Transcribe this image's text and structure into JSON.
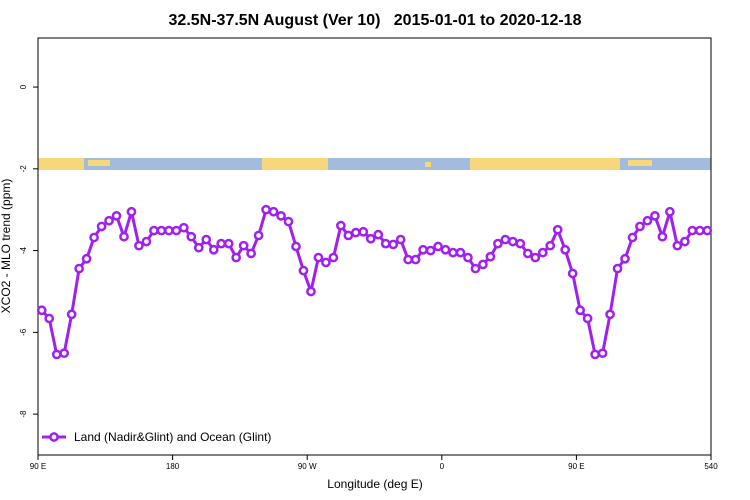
{
  "chart_data": {
    "type": "line",
    "title": "32.5N-37.5N August (Ver 10)   2015-01-01 to 2020-12-18",
    "x_label": "Longitude (deg E)",
    "y_label": "XCO2 - MLO trend (ppm)",
    "xlim": [
      90,
      540
    ],
    "xticks": [
      {
        "value": 90,
        "label": "90 E"
      },
      180,
      {
        "value": 270,
        "label": "90 W"
      },
      {
        "value": 360,
        "label": "0"
      },
      {
        "value": 450,
        "label": "90 E"
      },
      540
    ],
    "ylim": [
      -9.0,
      1.2
    ],
    "yticks": [
      0,
      -2,
      -4,
      -6,
      -8
    ],
    "legend": "bottom-left",
    "x": [
      92.5,
      97.5,
      102.5,
      107.5,
      112.5,
      117.5,
      122.5,
      127.5,
      132.5,
      137.5,
      142.5,
      147.5,
      152.5,
      157.5,
      162.5,
      167.5,
      172.5,
      177.5,
      182.5,
      187.5,
      192.5,
      197.5,
      202.5,
      207.5,
      212.5,
      217.5,
      222.5,
      227.5,
      232.5,
      237.5,
      242.5,
      247.5,
      252.5,
      257.5,
      262.5,
      267.5,
      272.5,
      277.5,
      282.5,
      287.5,
      292.5,
      297.5,
      302.5,
      307.5,
      312.5,
      317.5,
      322.5,
      327.5,
      332.5,
      337.5,
      342.5,
      347.5,
      352.5,
      357.5,
      362.5,
      367.5,
      372.5,
      377.5,
      382.5,
      387.5,
      392.5,
      397.5,
      402.5,
      407.5,
      412.5,
      417.5,
      422.5,
      427.5,
      432.5,
      437.5,
      442.5,
      447.5,
      452.5,
      457.5,
      462.5,
      467.5,
      472.5,
      477.5,
      482.5,
      487.5,
      492.5,
      497.5,
      502.5,
      507.5,
      512.5,
      517.5,
      522.5,
      527.5,
      532.5,
      537.5
    ],
    "series": [
      {
        "name": "Land (Nadir&Glint) and Ocean (Glint)",
        "color": "#a020f0",
        "values": [
          -5.46,
          -5.66,
          -6.54,
          -6.51,
          -5.56,
          -4.44,
          -4.2,
          -3.68,
          -3.41,
          -3.27,
          -3.15,
          -3.66,
          -3.05,
          -3.88,
          -3.78,
          -3.51,
          -3.51,
          -3.51,
          -3.51,
          -3.44,
          -3.66,
          -3.93,
          -3.73,
          -3.98,
          -3.83,
          -3.83,
          -4.17,
          -3.88,
          -4.07,
          -3.63,
          -3.0,
          -3.05,
          -3.15,
          -3.29,
          -3.9,
          -4.49,
          -5.0,
          -4.17,
          -4.29,
          -4.17,
          -3.39,
          -3.63,
          -3.56,
          -3.54,
          -3.71,
          -3.61,
          -3.83,
          -3.85,
          -3.73,
          -4.22,
          -4.22,
          -3.98,
          -4.0,
          -3.9,
          -3.98,
          -4.05,
          -4.05,
          -4.17,
          -4.44,
          -4.34,
          -4.15,
          -3.83,
          -3.73,
          -3.78,
          -3.83,
          -4.07,
          -4.17,
          -4.05,
          -3.88,
          -3.49,
          -3.98,
          -4.56,
          -5.46,
          -5.66,
          -6.54,
          -6.51,
          -5.56,
          -4.44,
          -4.2,
          -3.68,
          -3.41,
          -3.27,
          -3.15,
          -3.66,
          -3.05,
          -3.88,
          -3.78,
          -3.51,
          -3.51,
          -3.51
        ]
      }
    ]
  }
}
